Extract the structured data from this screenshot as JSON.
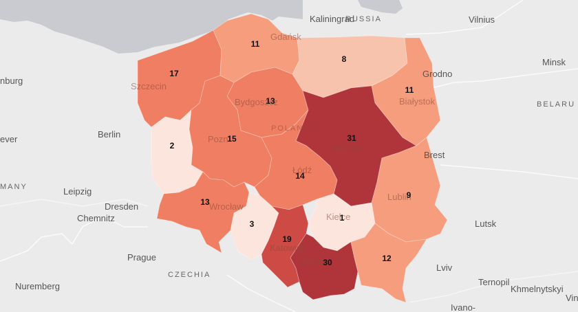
{
  "map": {
    "colors": {
      "background": "#ebebeb",
      "sea": "#c9cbd0",
      "level_1": "#fbe5dc",
      "level_2": "#f8c3ad",
      "level_3": "#f69d7e",
      "level_4": "#f07e62",
      "level_5": "#cd4a45",
      "level_6": "#b0353b"
    },
    "regions": [
      {
        "id": "zachodniopomorskie",
        "value": "17",
        "level": "level_4"
      },
      {
        "id": "pomorskie",
        "value": "11",
        "level": "level_3"
      },
      {
        "id": "warminsko-mazurskie",
        "value": "8",
        "level": "level_2"
      },
      {
        "id": "podlaskie",
        "value": "11",
        "level": "level_3"
      },
      {
        "id": "lubuskie",
        "value": "2",
        "level": "level_1"
      },
      {
        "id": "wielkopolskie",
        "value": "15",
        "level": "level_4"
      },
      {
        "id": "kujawsko-pomorskie",
        "value": "13",
        "level": "level_4"
      },
      {
        "id": "mazowieckie",
        "value": "31",
        "level": "level_6"
      },
      {
        "id": "lodzkie",
        "value": "14",
        "level": "level_4"
      },
      {
        "id": "lubelskie",
        "value": "9",
        "level": "level_3"
      },
      {
        "id": "dolnoslaskie",
        "value": "13",
        "level": "level_4"
      },
      {
        "id": "opolskie",
        "value": "3",
        "level": "level_1"
      },
      {
        "id": "slaskie",
        "value": "19",
        "level": "level_5"
      },
      {
        "id": "swietokrzyskie",
        "value": "1",
        "level": "level_1"
      },
      {
        "id": "malopolskie",
        "value": "30",
        "level": "level_6"
      },
      {
        "id": "podkarpackie",
        "value": "12",
        "level": "level_3"
      }
    ],
    "place_labels": {
      "kaliningrad": "Kaliningrad",
      "russia": "RUSSIA",
      "vilnius": "Vilnius",
      "minsk": "Minsk",
      "belarus": "BELARU",
      "grodno": "Grodno",
      "brest": "Brest",
      "lutsk": "Lutsk",
      "lviv": "Lviv",
      "ternopil": "Ternopil",
      "khmelnytskyi": "Khmelnytskyi",
      "ivano": "Ivano-",
      "vin": "Vin",
      "hamburg": "nburg",
      "bremen": "ever",
      "berlin": "Berlin",
      "germany": "MANY",
      "leipzig": "Leipzig",
      "dresden": "Dresden",
      "chemnitz": "Chemnitz",
      "prague": "Prague",
      "czechia": "CZECHIA",
      "nuremberg": "Nuremberg",
      "poland": "POLAND",
      "gdansk": "Gdańsk",
      "szczecin": "Szczecin",
      "bydgoszcz": "Bydgoszcz",
      "bialystok": "Białystok",
      "poznan": "Pozn",
      "warsaw": "Warsaw",
      "lodz": "Łódź",
      "lublin": "Lublin",
      "wroclaw": "Wrocław",
      "kielce": "Kielce",
      "katowice": "Katowice",
      "cracow": "Cracow"
    }
  }
}
